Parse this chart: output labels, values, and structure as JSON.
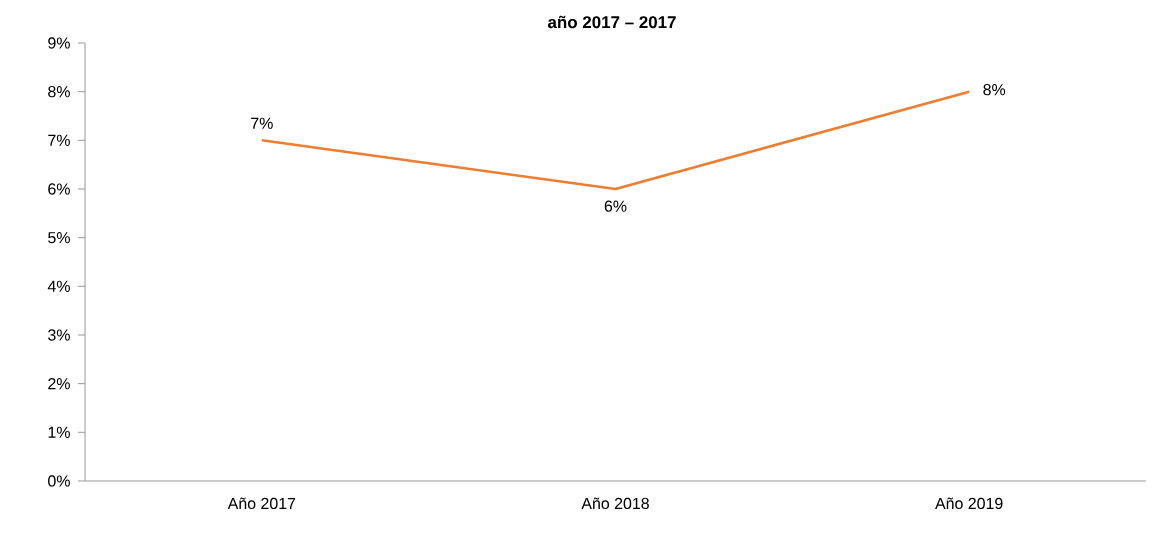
{
  "chart_data": {
    "type": "line",
    "title": "año 2017 – 2017",
    "categories": [
      "Año 2017",
      "Año 2018",
      "Año 2019"
    ],
    "series": [
      {
        "color": "#ed7d31",
        "values": [
          7,
          6,
          8
        ],
        "value_labels": [
          "7%",
          "6%",
          "8%"
        ]
      }
    ],
    "ylim": [
      0,
      9
    ],
    "yticks": [
      {
        "value": 0,
        "label": "0%"
      },
      {
        "value": 1,
        "label": "1%"
      },
      {
        "value": 2,
        "label": "2%"
      },
      {
        "value": 3,
        "label": "3%"
      },
      {
        "value": 4,
        "label": "4%"
      },
      {
        "value": 5,
        "label": "5%"
      },
      {
        "value": 6,
        "label": "6%"
      },
      {
        "value": 7,
        "label": "7%"
      },
      {
        "value": 8,
        "label": "8%"
      },
      {
        "value": 9,
        "label": "9%"
      }
    ],
    "grid": false,
    "marker": "none",
    "line_style": "solid"
  }
}
